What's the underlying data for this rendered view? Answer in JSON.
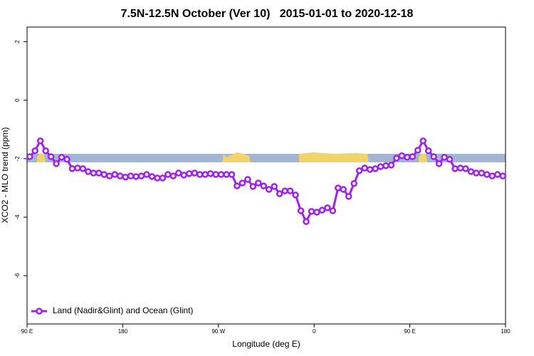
{
  "chart_data": {
    "type": "line",
    "title": "7.5N-12.5N October (Ver 10)   2015-01-01 to 2020-12-18",
    "x_label": "Longitude (deg E)",
    "y_label": "XCO2 - MLO trend (ppm)",
    "xlim": [
      90,
      540
    ],
    "ylim": [
      -7.65,
      2.5
    ],
    "xticks": [
      {
        "value": 90,
        "label": "90 E"
      },
      180,
      {
        "value": 270,
        "label": "90 W"
      },
      {
        "value": 360,
        "label": "0"
      },
      {
        "value": 450,
        "label": "90 E"
      },
      {
        "value": 540,
        "label": "180"
      }
    ],
    "yticks": [
      2,
      0,
      -2,
      -4,
      -6
    ],
    "legend": "bottom-left",
    "x": [
      92.5,
      97.5,
      102.5,
      107.5,
      112.5,
      117.5,
      122.5,
      127.5,
      132.5,
      137.5,
      142.5,
      147.5,
      152.5,
      157.5,
      162.5,
      167.5,
      172.5,
      177.5,
      182.5,
      187.5,
      192.5,
      197.5,
      202.5,
      207.5,
      212.5,
      217.5,
      222.5,
      227.5,
      232.5,
      237.5,
      242.5,
      247.5,
      252.5,
      257.5,
      262.5,
      267.5,
      272.5,
      277.5,
      282.5,
      287.5,
      292.5,
      297.5,
      302.5,
      307.5,
      312.5,
      317.5,
      322.5,
      327.5,
      332.5,
      337.5,
      342.5,
      347.5,
      352.5,
      357.5,
      362.5,
      367.5,
      372.5,
      377.5,
      382.5,
      387.5,
      392.5,
      397.5,
      402.5,
      407.5,
      412.5,
      417.5,
      422.5,
      427.5,
      432.5,
      437.5,
      442.5,
      447.5,
      452.5,
      457.5,
      462.5,
      467.5,
      472.5,
      477.5,
      482.5,
      487.5,
      492.5,
      497.5,
      502.5,
      507.5,
      512.5,
      517.5,
      522.5,
      527.5,
      532.5,
      537.5
    ],
    "series": [
      {
        "name": "Land (Nadir&Glint) and Ocean (Glint)",
        "color": "#a020f0",
        "values": [
          -1.93,
          -1.73,
          -1.39,
          -1.73,
          -1.93,
          -2.17,
          -1.95,
          -2.02,
          -2.34,
          -2.32,
          -2.34,
          -2.44,
          -2.49,
          -2.49,
          -2.54,
          -2.59,
          -2.54,
          -2.59,
          -2.63,
          -2.59,
          -2.61,
          -2.59,
          -2.54,
          -2.61,
          -2.66,
          -2.66,
          -2.54,
          -2.59,
          -2.49,
          -2.56,
          -2.51,
          -2.49,
          -2.54,
          -2.54,
          -2.51,
          -2.54,
          -2.54,
          -2.54,
          -2.54,
          -2.93,
          -2.83,
          -2.71,
          -2.95,
          -2.83,
          -2.93,
          -3.05,
          -2.95,
          -3.2,
          -3.1,
          -3.1,
          -3.24,
          -3.78,
          -4.15,
          -3.8,
          -3.83,
          -3.76,
          -3.68,
          -3.78,
          -3.0,
          -3.05,
          -3.29,
          -2.85,
          -2.41,
          -2.32,
          -2.37,
          -2.34,
          -2.27,
          -2.24,
          -2.22,
          -1.98,
          -1.9,
          -1.95,
          -1.93,
          -1.71,
          -1.39,
          -1.73,
          -1.93,
          -2.17,
          -1.95,
          -2.02,
          -2.34,
          -2.32,
          -2.34,
          -2.44,
          -2.49,
          -2.49,
          -2.54,
          -2.59,
          -2.54,
          -2.59
        ]
      }
    ]
  }
}
